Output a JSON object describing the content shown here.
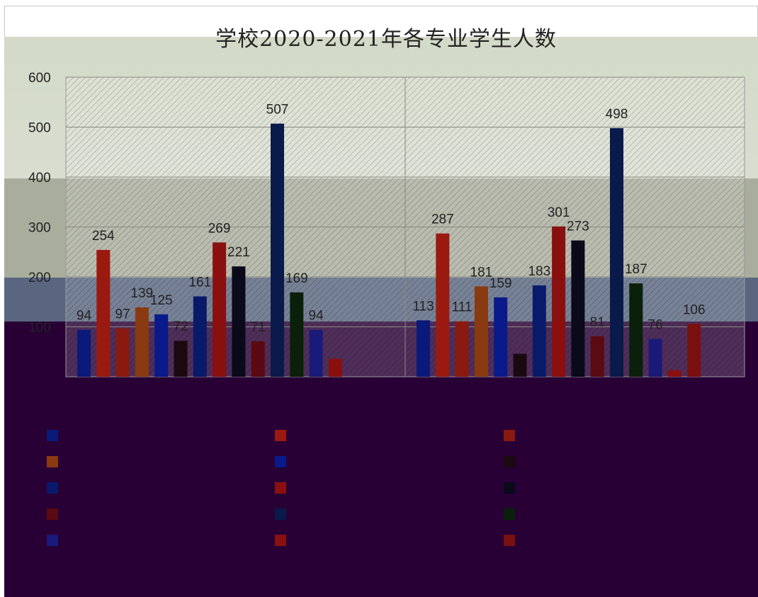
{
  "chart_data": {
    "type": "bar",
    "title": "学校2020-2021年各专业学生人数",
    "ylim": [
      0,
      600
    ],
    "yticks": [
      100,
      200,
      300,
      400,
      500,
      600
    ],
    "grid": true,
    "legend_position": "bottom",
    "categories": [
      "",
      ""
    ],
    "series": [
      {
        "color": "#0a1a7a",
        "values": [
          94,
          113
        ]
      },
      {
        "color": "#9b1a10",
        "values": [
          254,
          287
        ]
      },
      {
        "color": "#8a1a10",
        "values": [
          97,
          111
        ]
      },
      {
        "color": "#8a3a10",
        "values": [
          139,
          181
        ]
      },
      {
        "color": "#0a1a8a",
        "values": [
          125,
          159
        ]
      },
      {
        "color": "#1a0a10",
        "values": [
          72,
          46
        ]
      },
      {
        "color": "#0a1a6a",
        "values": [
          161,
          183
        ]
      },
      {
        "color": "#8a1010",
        "values": [
          269,
          301
        ]
      },
      {
        "color": "#0a0a1a",
        "values": [
          221,
          273
        ]
      },
      {
        "color": "#5a0a10",
        "values": [
          71,
          81
        ]
      },
      {
        "color": "#0a1a4a",
        "values": [
          507,
          498
        ]
      },
      {
        "color": "#0a200a",
        "values": [
          169,
          187
        ]
      },
      {
        "color": "#1a1a7a",
        "values": [
          94,
          76
        ]
      },
      {
        "color": "#8a1010",
        "values": [
          36,
          13
        ]
      },
      {
        "color": "#7a1010",
        "values": [
          0,
          106
        ]
      }
    ],
    "data_labels": [
      [
        "94",
        "113"
      ],
      [
        "254",
        "287"
      ],
      [
        "97",
        "111"
      ],
      [
        "139",
        "181"
      ],
      [
        "125",
        "159"
      ],
      [
        "72",
        ""
      ],
      [
        "161",
        "183"
      ],
      [
        "269",
        "301"
      ],
      [
        "221",
        "273"
      ],
      [
        "71",
        "81"
      ],
      [
        "507",
        "498"
      ],
      [
        "169",
        "187"
      ],
      [
        "94",
        "76"
      ],
      [
        "",
        ""
      ],
      [
        "",
        "106"
      ]
    ]
  }
}
